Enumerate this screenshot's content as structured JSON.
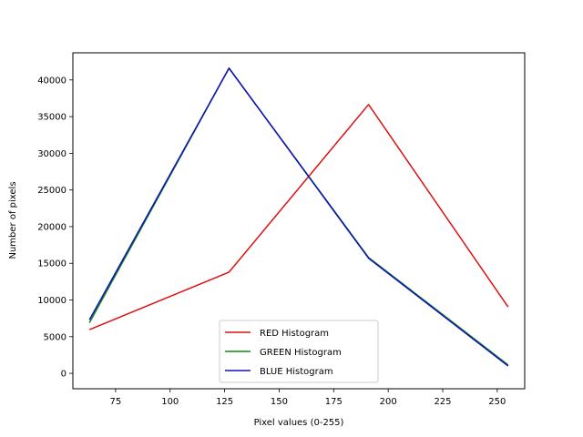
{
  "chart_data": {
    "type": "line",
    "title": "",
    "xlabel": "Pixel values (0-255)",
    "ylabel": "Number of pixels",
    "xlim": [
      55.4,
      262.6
    ],
    "ylim": [
      -2100,
      43700
    ],
    "x_ticks": [
      75,
      100,
      125,
      150,
      175,
      200,
      225,
      250
    ],
    "y_ticks": [
      0,
      5000,
      10000,
      15000,
      20000,
      25000,
      30000,
      35000,
      40000
    ],
    "grid": false,
    "legend_position": "lower center",
    "series": [
      {
        "name": "RED Histogram",
        "color": "#dd1111",
        "x": [
          63,
          127,
          191,
          255
        ],
        "y": [
          5950,
          13800,
          36650,
          9050
        ]
      },
      {
        "name": "GREEN Histogram",
        "color": "#118811",
        "x": [
          63,
          127,
          191,
          255
        ],
        "y": [
          6900,
          41600,
          15800,
          1150
        ]
      },
      {
        "name": "BLUE Histogram",
        "color": "#1111bb",
        "x": [
          63,
          127,
          191,
          255
        ],
        "y": [
          7300,
          41600,
          15700,
          1000
        ]
      }
    ]
  }
}
